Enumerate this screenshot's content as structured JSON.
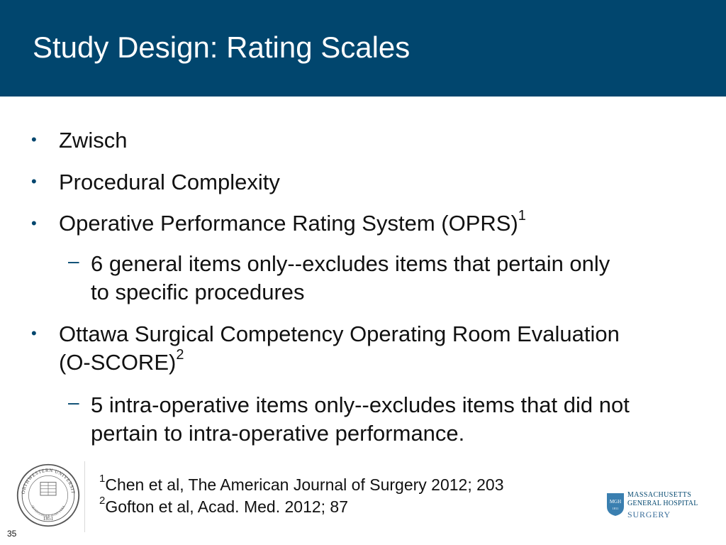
{
  "header": {
    "title": "Study Design: Rating Scales"
  },
  "content": {
    "item1": {
      "text": "Zwisch"
    },
    "item2": {
      "text": "Procedural Complexity"
    },
    "item3": {
      "text": "Operative Performance Rating System (OPRS)",
      "ref": "1"
    },
    "sub1": {
      "line1": "6 general items only--excludes items that pertain only",
      "line2": "to specific procedures"
    },
    "item4": {
      "line1": "Ottawa Surgical Competency Operating Room Evaluation",
      "line2": "(O-SCORE)",
      "ref": "2"
    },
    "sub2": {
      "line1": "5 intra-operative items only--excludes items that did not",
      "line2": "pertain to intra-operative performance."
    }
  },
  "footer": {
    "refs": [
      {
        "num": "1",
        "text": "Chen et al, The American Journal of Surgery 2012; 203"
      },
      {
        "num": "2",
        "text": "Gofton et al, Acad. Med. 2012; 87"
      }
    ],
    "seal": {
      "top": "NORTHWESTERN UNIVERSITY",
      "year": "1851",
      "motto": "QUAECUMQUE SUNT VERA"
    },
    "mgh": {
      "badge": "MGH",
      "badge_year": "1811",
      "line1": "MASSACHUSETTS",
      "line2": "GENERAL HOSPITAL",
      "line3": "SURGERY"
    },
    "page_number": "35"
  },
  "colors": {
    "header_bg": "#01466e",
    "title_text": "#ffffff",
    "bullet": "#01466e"
  },
  "icons": {
    "left_logo": "northwestern-seal-icon",
    "right_logo": "mgh-shield-icon"
  }
}
